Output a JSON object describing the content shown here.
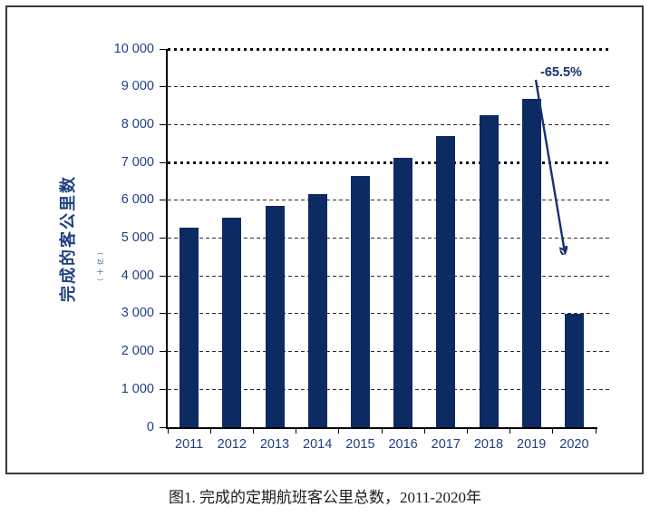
{
  "figure": {
    "caption": "图1. 完成的定期航班客公里总数，2011-2020年"
  },
  "chart_data": {
    "type": "bar",
    "title": "图1. 完成的定期航班客公里总数，2011-2020年",
    "ylabel": "完成的客公里数",
    "ylabel_unit": "（十亿）",
    "categories": [
      "2011",
      "2012",
      "2013",
      "2014",
      "2015",
      "2016",
      "2017",
      "2018",
      "2019",
      "2020"
    ],
    "values": [
      5280,
      5530,
      5840,
      6160,
      6640,
      7120,
      7700,
      8260,
      8680,
      2990
    ],
    "ylim": [
      0,
      10000
    ],
    "ytick_values": [
      0,
      1000,
      2000,
      3000,
      4000,
      5000,
      6000,
      7000,
      8000,
      9000,
      10000
    ],
    "ytick_labels": [
      "0",
      "1 000",
      "2 000",
      "3 000",
      "4 000",
      "5 000",
      "6 000",
      "7 000",
      "8 000",
      "9 000",
      "10 000"
    ],
    "bold_gridlines": [
      7000,
      10000
    ],
    "grid": true,
    "legend_position": "none",
    "xlabel": "",
    "annotation": {
      "text": "-65.5%",
      "from_category": "2019",
      "to_category": "2020"
    },
    "colors": {
      "bar": "#0e2a62",
      "axis_text": "#1f4080",
      "annotation": "#16336e",
      "gridline": "#2b2b2b",
      "frame_border": "#3a3a3a",
      "caption_text": "#1c1c1c"
    }
  }
}
